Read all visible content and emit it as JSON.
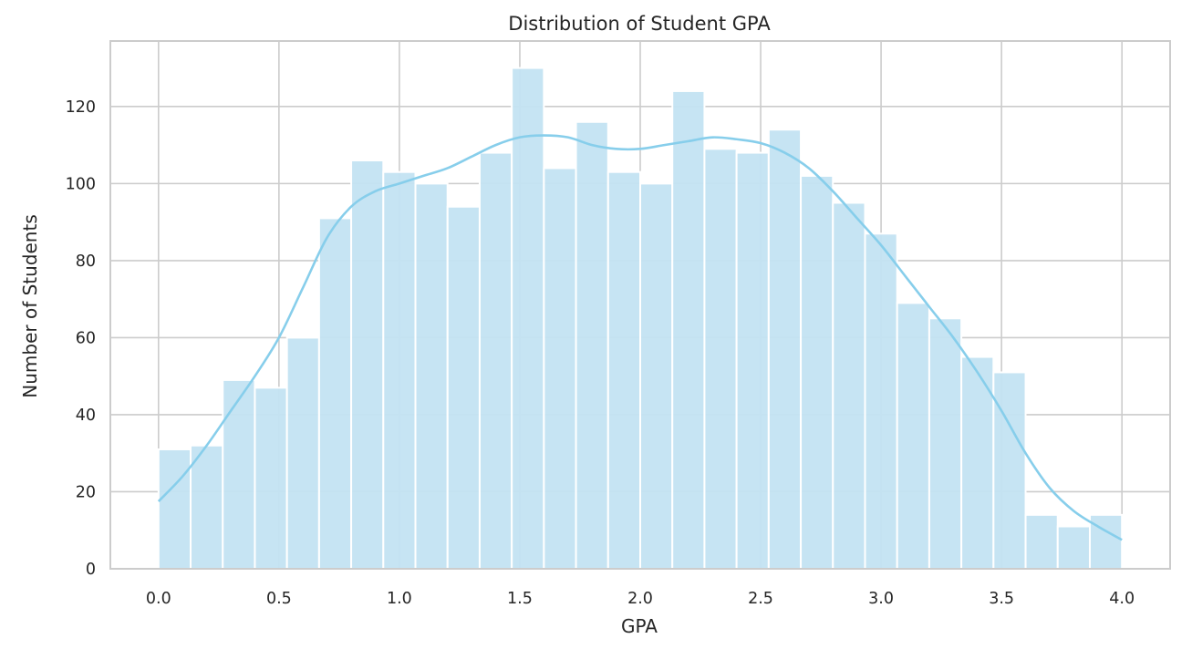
{
  "chart_data": {
    "type": "bar",
    "title": "Distribution of Student GPA",
    "xlabel": "GPA",
    "ylabel": "Number of Students",
    "xlim": [
      -0.2,
      4.2
    ],
    "ylim": [
      0,
      137
    ],
    "xticks": [
      "0.0",
      "0.5",
      "1.0",
      "1.5",
      "2.0",
      "2.5",
      "3.0",
      "3.5",
      "4.0"
    ],
    "yticks": [
      "0",
      "20",
      "40",
      "60",
      "80",
      "100",
      "120"
    ],
    "grid": true,
    "bins": 30,
    "bin_range": [
      0,
      4
    ],
    "values": [
      31,
      32,
      49,
      47,
      60,
      91,
      106,
      103,
      100,
      94,
      108,
      130,
      104,
      116,
      103,
      100,
      124,
      109,
      108,
      114,
      102,
      95,
      87,
      69,
      65,
      55,
      51,
      14,
      11,
      14
    ],
    "kde": {
      "x": [
        0.0,
        0.1,
        0.2,
        0.3,
        0.4,
        0.5,
        0.6,
        0.7,
        0.8,
        0.9,
        1.0,
        1.1,
        1.2,
        1.3,
        1.4,
        1.5,
        1.6,
        1.7,
        1.8,
        1.9,
        2.0,
        2.1,
        2.2,
        2.3,
        2.4,
        2.5,
        2.6,
        2.7,
        2.8,
        2.9,
        3.0,
        3.1,
        3.2,
        3.3,
        3.4,
        3.5,
        3.6,
        3.7,
        3.8,
        3.9,
        4.0
      ],
      "y": [
        17.5,
        24,
        32,
        41,
        50,
        60,
        73,
        86,
        94,
        98,
        100,
        102,
        104,
        107,
        110,
        112,
        112.5,
        112,
        110,
        109,
        109,
        110,
        111,
        112,
        111.5,
        110.5,
        108,
        104,
        98,
        91,
        84,
        76,
        68,
        60,
        51,
        41,
        30,
        21,
        15,
        11,
        7.5
      ]
    },
    "colors": {
      "bar": "#c3e3f2",
      "bar_edge": "#ffffff",
      "kde": "#87ceeb",
      "grid": "#cccccc",
      "axes": "#cccccc"
    }
  }
}
